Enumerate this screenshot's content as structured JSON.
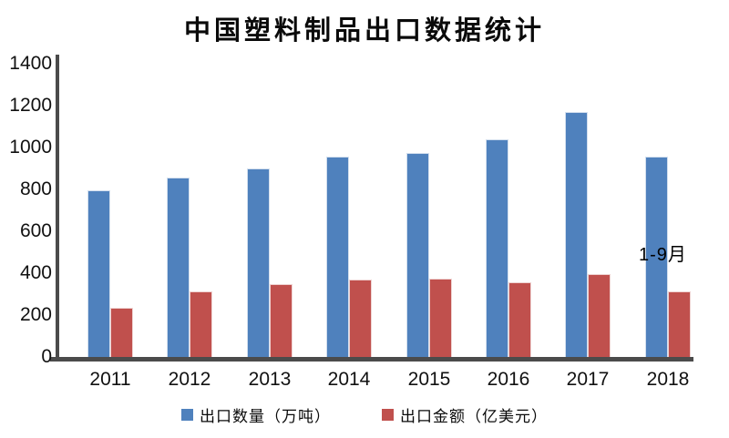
{
  "title": "中国塑料制品出口数据统计",
  "colors": {
    "series_blue": "#4F81BD",
    "series_red": "#C0504D",
    "axis": "#4B4B4B",
    "text": "#000000",
    "background": "#FFFFFF"
  },
  "chart_data": {
    "type": "bar",
    "title": "中国塑料制品出口数据统计",
    "categories": [
      "2011",
      "2012",
      "2013",
      "2014",
      "2015",
      "2016",
      "2017",
      "2018"
    ],
    "series": [
      {
        "name": "出口数量（万吨）",
        "color": "#4F81BD",
        "values": [
          795,
          855,
          900,
          955,
          975,
          1040,
          1170,
          955
        ]
      },
      {
        "name": "出口金额（亿美元）",
        "color": "#C0504D",
        "values": [
          235,
          315,
          350,
          370,
          375,
          355,
          395,
          315
        ]
      }
    ],
    "xlabel": "",
    "ylabel": "",
    "ylim": [
      0,
      1400
    ],
    "ytick_step": 200,
    "yticks": [
      0,
      200,
      400,
      600,
      800,
      1000,
      1200,
      1400
    ],
    "grid": false,
    "legend_position": "bottom",
    "annotations": [
      {
        "text": "1-9月",
        "target_category": "2018"
      }
    ]
  }
}
